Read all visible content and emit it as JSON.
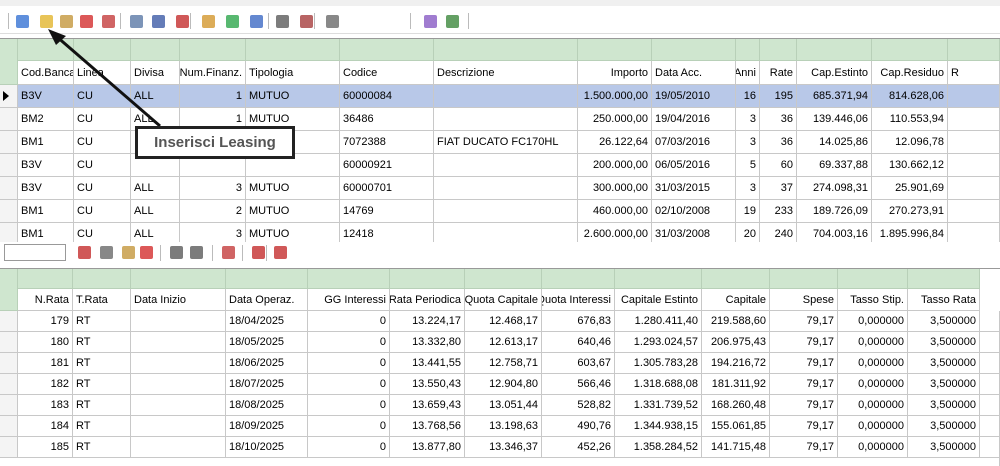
{
  "upper_grid": {
    "columns": [
      "Cod.Banca",
      "Linea",
      "Divisa",
      "Num.Finanz.",
      "Tipologia",
      "Codice",
      "Descrizione",
      "Importo",
      "Data Acc.",
      "Anni",
      "Rate",
      "Cap.Estinto",
      "Cap.Residuo",
      "R"
    ],
    "rows": [
      [
        "B3V",
        "CU",
        "ALL",
        "1",
        "MUTUO",
        "60000084",
        null,
        "1.500.000,00",
        "19/05/2010",
        "16",
        "195",
        "685.371,94",
        "814.628,06"
      ],
      [
        "BM2",
        "CU",
        "ALL",
        "1",
        "MUTUO",
        "36486",
        null,
        "250.000,00",
        "19/04/2016",
        "3",
        "36",
        "139.446,06",
        "110.553,94"
      ],
      [
        "BM1",
        "CU",
        null,
        null,
        null,
        "7072388",
        "FIAT DUCATO FC170HL",
        "26.122,64",
        "07/03/2016",
        "3",
        "36",
        "14.025,86",
        "12.096,78"
      ],
      [
        "B3V",
        "CU",
        null,
        null,
        null,
        "60000921",
        null,
        "200.000,00",
        "06/05/2016",
        "5",
        "60",
        "69.337,88",
        "130.662,12"
      ],
      [
        "B3V",
        "CU",
        "ALL",
        "3",
        "MUTUO",
        "60000701",
        null,
        "300.000,00",
        "31/03/2015",
        "3",
        "37",
        "274.098,31",
        "25.901,69"
      ],
      [
        "BM1",
        "CU",
        "ALL",
        "2",
        "MUTUO",
        "14769",
        null,
        "460.000,00",
        "02/10/2008",
        "19",
        "233",
        "189.726,09",
        "270.273,91"
      ],
      [
        "BM1",
        "CU",
        "ALL",
        "3",
        "MUTUO",
        "12418",
        null,
        "2.600.000,00",
        "31/03/2008",
        "20",
        "240",
        "704.003,16",
        "1.895.996,84"
      ]
    ]
  },
  "callout": {
    "label": "Inserisci Leasing"
  },
  "lower_grid": {
    "columns": [
      "N.Rata",
      "T.Rata",
      "Data Inizio",
      "Data Operaz.",
      "GG Interessi",
      "Rata Periodica",
      "Quota Capitale",
      "Quota Interessi",
      "Capitale Estinto",
      "Capitale",
      "Spese",
      "Tasso Stip.",
      "Tasso Rata"
    ],
    "rows": [
      [
        "179",
        "RT",
        null,
        "18/04/2025",
        "0",
        "13.224,17",
        "12.468,17",
        "676,83",
        "1.280.411,40",
        "219.588,60",
        "79,17",
        "0,000000",
        "3,500000"
      ],
      [
        "180",
        "RT",
        null,
        "18/05/2025",
        "0",
        "13.332,80",
        "12.613,17",
        "640,46",
        "1.293.024,57",
        "206.975,43",
        "79,17",
        "0,000000",
        "3,500000"
      ],
      [
        "181",
        "RT",
        null,
        "18/06/2025",
        "0",
        "13.441,55",
        "12.758,71",
        "603,67",
        "1.305.783,28",
        "194.216,72",
        "79,17",
        "0,000000",
        "3,500000"
      ],
      [
        "182",
        "RT",
        null,
        "18/07/2025",
        "0",
        "13.550,43",
        "12.904,80",
        "566,46",
        "1.318.688,08",
        "181.311,92",
        "79,17",
        "0,000000",
        "3,500000"
      ],
      [
        "183",
        "RT",
        null,
        "18/08/2025",
        "0",
        "13.659,43",
        "13.051,44",
        "528,82",
        "1.331.739,52",
        "168.260,48",
        "79,17",
        "0,000000",
        "3,500000"
      ],
      [
        "184",
        "RT",
        null,
        "18/09/2025",
        "0",
        "13.768,56",
        "13.198,63",
        "490,76",
        "1.344.938,15",
        "155.061,85",
        "79,17",
        "0,000000",
        "3,500000"
      ],
      [
        "185",
        "RT",
        null,
        "18/10/2025",
        "0",
        "13.877,80",
        "13.346,37",
        "452,26",
        "1.358.284,52",
        "141.715,48",
        "79,17",
        "0,000000",
        "3,500000"
      ]
    ]
  }
}
